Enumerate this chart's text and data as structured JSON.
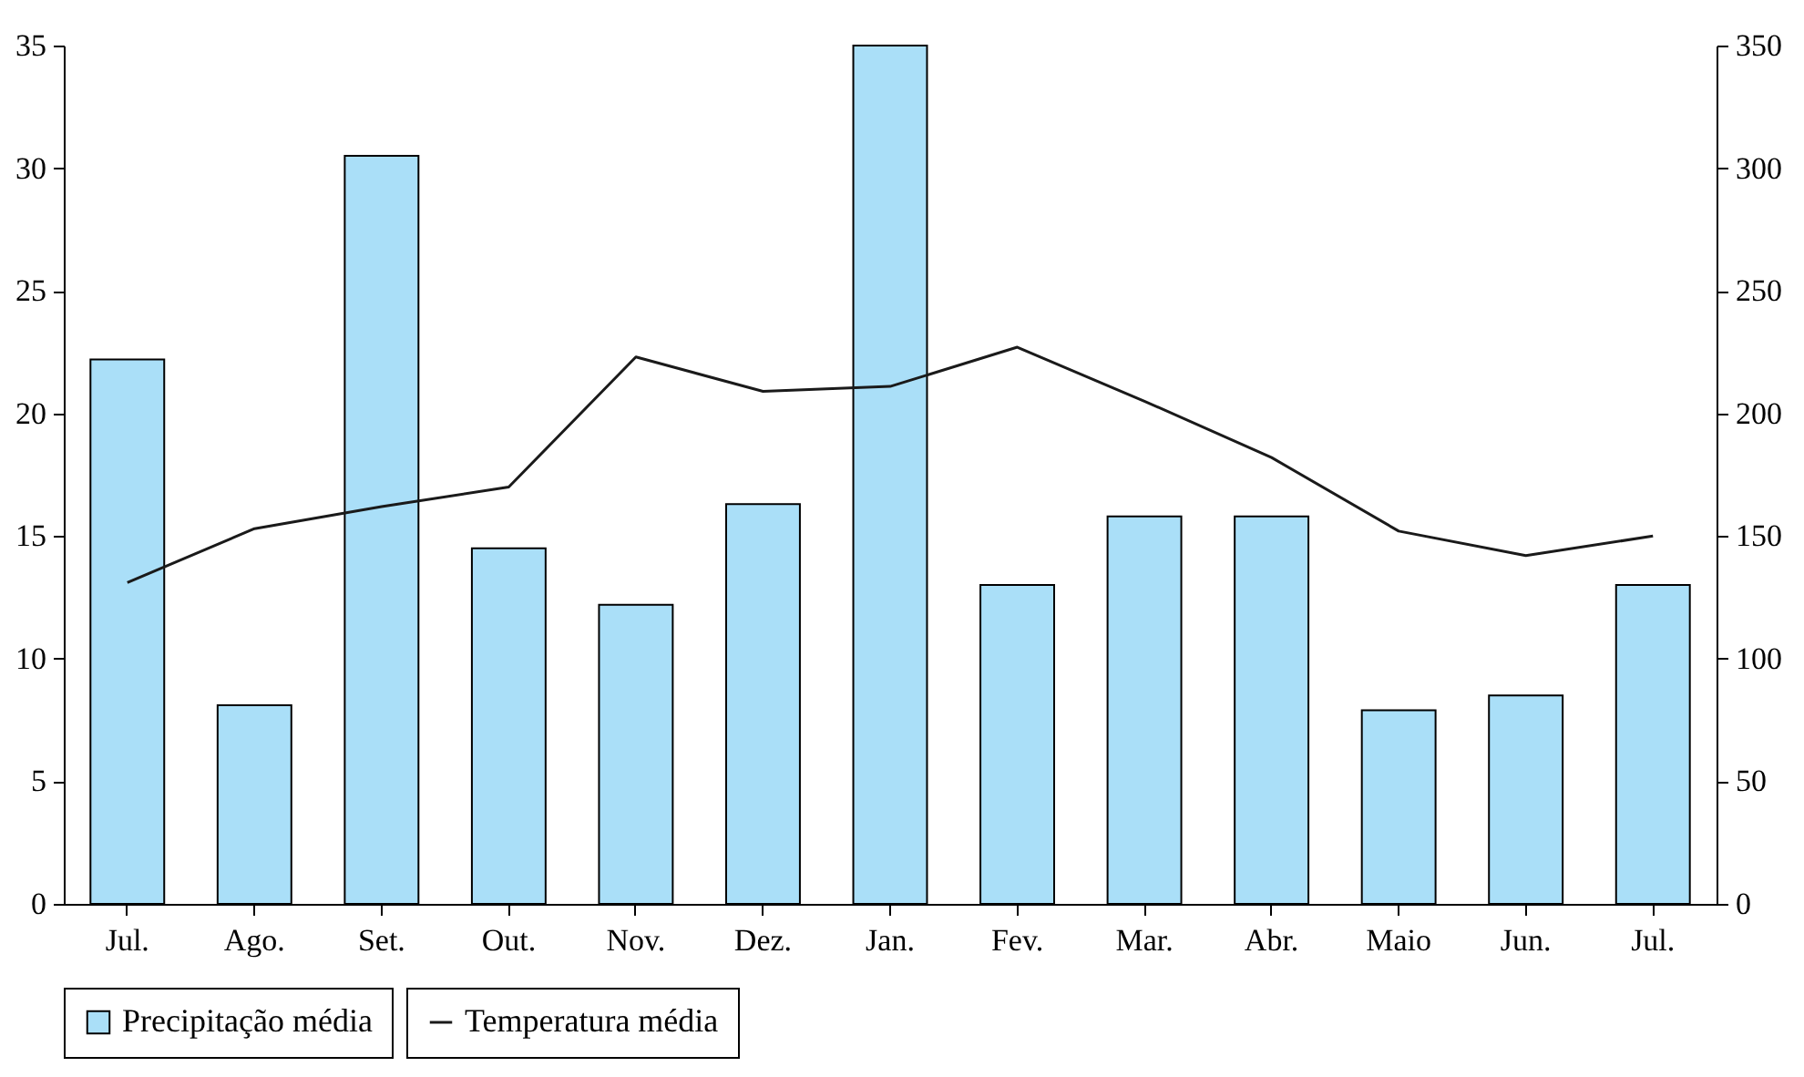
{
  "chart_data": {
    "type": "bar",
    "categories": [
      "Jul.",
      "Ago.",
      "Set.",
      "Out.",
      "Nov.",
      "Dez.",
      "Jan.",
      "Fev.",
      "Mar.",
      "Abr.",
      "Maio",
      "Jun.",
      "Jul."
    ],
    "series": [
      {
        "name": "Precipitação média",
        "axis": "y2",
        "color": "#aadff8",
        "values": [
          222,
          81,
          305,
          145,
          122,
          163,
          350,
          130,
          158,
          158,
          79,
          85,
          130
        ]
      },
      {
        "name": "Temperatura média",
        "type": "line",
        "axis": "y",
        "color": "#1a1a1a",
        "values": [
          13.1,
          15.3,
          16.2,
          17.0,
          22.3,
          20.9,
          21.1,
          22.7,
          20.5,
          18.2,
          15.2,
          14.2,
          15.0
        ]
      }
    ],
    "ylim": [
      0,
      35
    ],
    "yticks": [
      0,
      5,
      10,
      15,
      20,
      25,
      30,
      35
    ],
    "y2lim": [
      0,
      350
    ],
    "y2ticks": [
      0,
      50,
      100,
      150,
      200,
      250,
      300,
      350
    ],
    "legend": "bottom",
    "grid": false
  }
}
